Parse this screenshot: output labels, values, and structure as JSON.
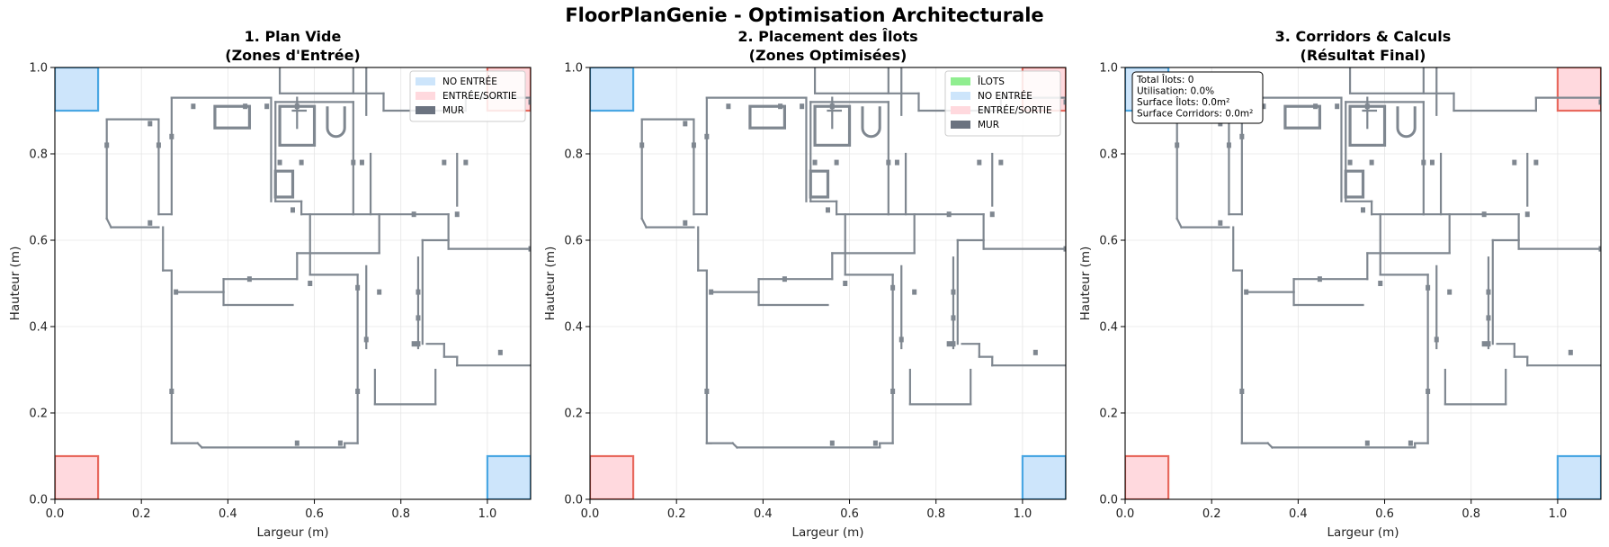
{
  "title": "FloorPlanGenie - Optimisation Architecturale",
  "colors": {
    "wall": "#7f8790",
    "no_entree_fill": "#cde5fb",
    "no_entree_edge": "#4aa7e3",
    "entree_fill": "#ffd9de",
    "entree_edge": "#e8695e",
    "ilots": "#90ee90",
    "mur": "#6b7380",
    "grid": "#e6e6e6"
  },
  "panels": [
    {
      "title_line1": "1. Plan Vide",
      "title_line2": "(Zones d'Entrée)",
      "xlabel": "Largeur (m)",
      "ylabel": "Hauteur (m)",
      "legend": [
        "NO ENTRÉE",
        "ENTRÉE/SORTIE",
        "MUR"
      ],
      "legend_keys": [
        "no_entree",
        "entree",
        "mur"
      ],
      "stats": []
    },
    {
      "title_line1": "2. Placement des Îlots",
      "title_line2": "(Zones Optimisées)",
      "xlabel": "Largeur (m)",
      "ylabel": "Hauteur (m)",
      "legend": [
        "ÎLOTS",
        "NO ENTRÉE",
        "ENTRÉE/SORTIE",
        "MUR"
      ],
      "legend_keys": [
        "ilots",
        "no_entree",
        "entree",
        "mur"
      ],
      "stats": []
    },
    {
      "title_line1": "3. Corridors & Calculs",
      "title_line2": "(Résultat Final)",
      "xlabel": "Largeur (m)",
      "ylabel": "Hauteur (m)",
      "legend": [],
      "legend_keys": [],
      "stats": [
        "Total Îlots: 0",
        "Utilisation: 0.0%",
        "Surface Îlots: 0.0m²",
        "Surface Corridors: 0.0m²"
      ]
    }
  ],
  "chart_data": {
    "type": "plan",
    "xlim": [
      0,
      1.1
    ],
    "ylim": [
      0,
      1.0
    ],
    "xticks": [
      0.0,
      0.2,
      0.4,
      0.6,
      0.8,
      1.0
    ],
    "yticks": [
      0.0,
      0.2,
      0.4,
      0.6,
      0.8,
      1.0
    ],
    "xtick_labels": [
      "0.0",
      "0.2",
      "0.4",
      "0.6",
      "0.8",
      "1.0"
    ],
    "ytick_labels": [
      "0.0",
      "0.2",
      "0.4",
      "0.6",
      "0.8",
      "1.0"
    ],
    "grid": true,
    "legend_position": "top-right",
    "zones": {
      "no_entree": [
        [
          0.0,
          0.9,
          0.1,
          1.0
        ],
        [
          1.0,
          0.0,
          1.1,
          0.1
        ]
      ],
      "entree": [
        [
          0.0,
          0.0,
          0.1,
          0.1
        ],
        [
          1.0,
          0.9,
          1.1,
          1.0
        ]
      ]
    },
    "wall_segments": [
      [
        0.51,
        0.92,
        0.51,
        0.69
      ],
      [
        0.51,
        0.69,
        0.57,
        0.69
      ],
      [
        0.57,
        0.69,
        0.57,
        0.66
      ],
      [
        0.57,
        0.66,
        0.69,
        0.66
      ],
      [
        0.69,
        0.66,
        0.69,
        0.92
      ],
      [
        0.69,
        0.92,
        0.51,
        0.92
      ],
      [
        0.69,
        0.94,
        0.76,
        0.94
      ],
      [
        0.76,
        0.94,
        0.76,
        0.9
      ],
      [
        0.76,
        0.9,
        0.95,
        0.9
      ],
      [
        0.95,
        0.9,
        0.95,
        0.93
      ],
      [
        0.95,
        0.93,
        1.1,
        0.93
      ],
      [
        0.93,
        0.8,
        0.93,
        0.68
      ],
      [
        0.91,
        0.66,
        0.91,
        0.58
      ],
      [
        0.91,
        0.58,
        1.1,
        0.58
      ],
      [
        0.69,
        0.66,
        0.91,
        0.66
      ],
      [
        0.73,
        0.66,
        0.73,
        0.8
      ],
      [
        0.12,
        0.88,
        0.24,
        0.88
      ],
      [
        0.24,
        0.88,
        0.24,
        0.66
      ],
      [
        0.24,
        0.66,
        0.27,
        0.66
      ],
      [
        0.27,
        0.66,
        0.27,
        0.93
      ],
      [
        0.27,
        0.93,
        0.5,
        0.93
      ],
      [
        0.5,
        0.93,
        0.5,
        0.69
      ],
      [
        0.12,
        0.88,
        0.12,
        0.65
      ],
      [
        0.12,
        0.65,
        0.13,
        0.63
      ],
      [
        0.13,
        0.63,
        0.24,
        0.63
      ],
      [
        0.25,
        0.63,
        0.25,
        0.53
      ],
      [
        0.25,
        0.53,
        0.27,
        0.53
      ],
      [
        0.27,
        0.53,
        0.27,
        0.13
      ],
      [
        0.28,
        0.13,
        0.27,
        0.13
      ],
      [
        0.27,
        0.13,
        0.33,
        0.13
      ],
      [
        0.33,
        0.13,
        0.34,
        0.12
      ],
      [
        0.34,
        0.12,
        0.67,
        0.12
      ],
      [
        0.67,
        0.12,
        0.67,
        0.13
      ],
      [
        0.67,
        0.13,
        0.7,
        0.13
      ],
      [
        0.7,
        0.13,
        0.7,
        0.52
      ],
      [
        0.7,
        0.52,
        0.59,
        0.52
      ],
      [
        0.59,
        0.52,
        0.59,
        0.66
      ],
      [
        0.28,
        0.48,
        0.39,
        0.48
      ],
      [
        0.39,
        0.48,
        0.39,
        0.51
      ],
      [
        0.39,
        0.51,
        0.56,
        0.51
      ],
      [
        0.56,
        0.51,
        0.56,
        0.57
      ],
      [
        0.39,
        0.45,
        0.39,
        0.48
      ],
      [
        0.39,
        0.45,
        0.55,
        0.45
      ],
      [
        0.56,
        0.57,
        0.75,
        0.57
      ],
      [
        0.75,
        0.57,
        0.75,
        0.66
      ],
      [
        0.72,
        0.54,
        0.72,
        0.35
      ],
      [
        0.74,
        0.3,
        0.74,
        0.22
      ],
      [
        0.74,
        0.22,
        0.88,
        0.22
      ],
      [
        0.88,
        0.22,
        0.88,
        0.3
      ],
      [
        0.84,
        0.56,
        0.84,
        0.35
      ],
      [
        0.85,
        0.6,
        0.85,
        0.36
      ],
      [
        0.85,
        0.6,
        0.91,
        0.6
      ],
      [
        0.86,
        0.36,
        0.9,
        0.36
      ],
      [
        0.9,
        0.36,
        0.9,
        0.33
      ],
      [
        0.9,
        0.33,
        0.93,
        0.33
      ],
      [
        0.93,
        0.33,
        0.93,
        0.31
      ],
      [
        0.93,
        0.31,
        1.1,
        0.31
      ],
      [
        0.56,
        0.93,
        0.56,
        0.86
      ],
      [
        0.55,
        0.9,
        0.58,
        0.9
      ],
      [
        0.72,
        1.0,
        0.72,
        0.89
      ],
      [
        0.52,
        0.82,
        0.52,
        0.85
      ]
    ],
    "fixtures": [
      [
        0.37,
        0.86,
        0.45,
        0.91
      ],
      [
        0.52,
        0.82,
        0.6,
        0.91
      ],
      [
        0.51,
        0.7,
        0.55,
        0.76
      ]
    ],
    "top_box": [
      0.52,
      0.94,
      0.69,
      1.01
    ],
    "tub": [
      0.63,
      0.84,
      0.67,
      0.91
    ],
    "markers": [
      [
        0.22,
        0.87
      ],
      [
        0.12,
        0.82
      ],
      [
        0.24,
        0.82
      ],
      [
        0.27,
        0.84
      ],
      [
        0.32,
        0.91
      ],
      [
        0.44,
        0.91
      ],
      [
        0.49,
        0.91
      ],
      [
        0.56,
        0.91
      ],
      [
        0.57,
        0.78
      ],
      [
        0.69,
        0.78
      ],
      [
        0.71,
        0.78
      ],
      [
        0.52,
        0.78
      ],
      [
        0.55,
        0.67
      ],
      [
        0.83,
        0.66
      ],
      [
        0.93,
        0.66
      ],
      [
        0.9,
        0.78
      ],
      [
        0.95,
        0.78
      ],
      [
        1.1,
        0.92
      ],
      [
        1.1,
        0.58
      ],
      [
        0.22,
        0.64
      ],
      [
        0.45,
        0.51
      ],
      [
        0.59,
        0.5
      ],
      [
        0.7,
        0.49
      ],
      [
        0.75,
        0.48
      ],
      [
        0.84,
        0.48
      ],
      [
        0.28,
        0.48
      ],
      [
        0.27,
        0.25
      ],
      [
        0.7,
        0.25
      ],
      [
        0.56,
        0.13
      ],
      [
        0.66,
        0.13
      ],
      [
        0.83,
        0.36
      ],
      [
        0.84,
        0.36
      ],
      [
        1.03,
        0.34
      ],
      [
        0.72,
        0.37
      ],
      [
        0.84,
        0.42
      ]
    ]
  }
}
